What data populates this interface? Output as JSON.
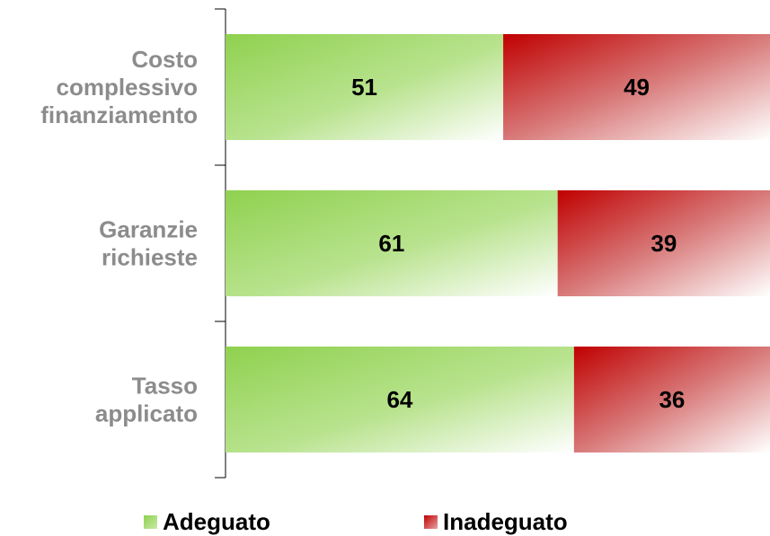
{
  "chart_data": {
    "type": "bar",
    "orientation": "horizontal",
    "stacked": true,
    "categories": [
      "Costo complessivo finanziamento",
      "Garanzie richieste",
      "Tasso applicato"
    ],
    "category_lines": [
      [
        "Costo",
        "complessivo",
        "finanziamento"
      ],
      [
        "Garanzie",
        "richieste"
      ],
      [
        "Tasso",
        "applicato"
      ]
    ],
    "series": [
      {
        "name": "Adeguato",
        "values": [
          51,
          61,
          64
        ],
        "color": "#8fd14f"
      },
      {
        "name": "Inadeguato",
        "values": [
          49,
          39,
          36
        ],
        "color": "#c00000"
      }
    ],
    "xlim": [
      0,
      100
    ],
    "grid": false,
    "legend_position": "bottom"
  }
}
